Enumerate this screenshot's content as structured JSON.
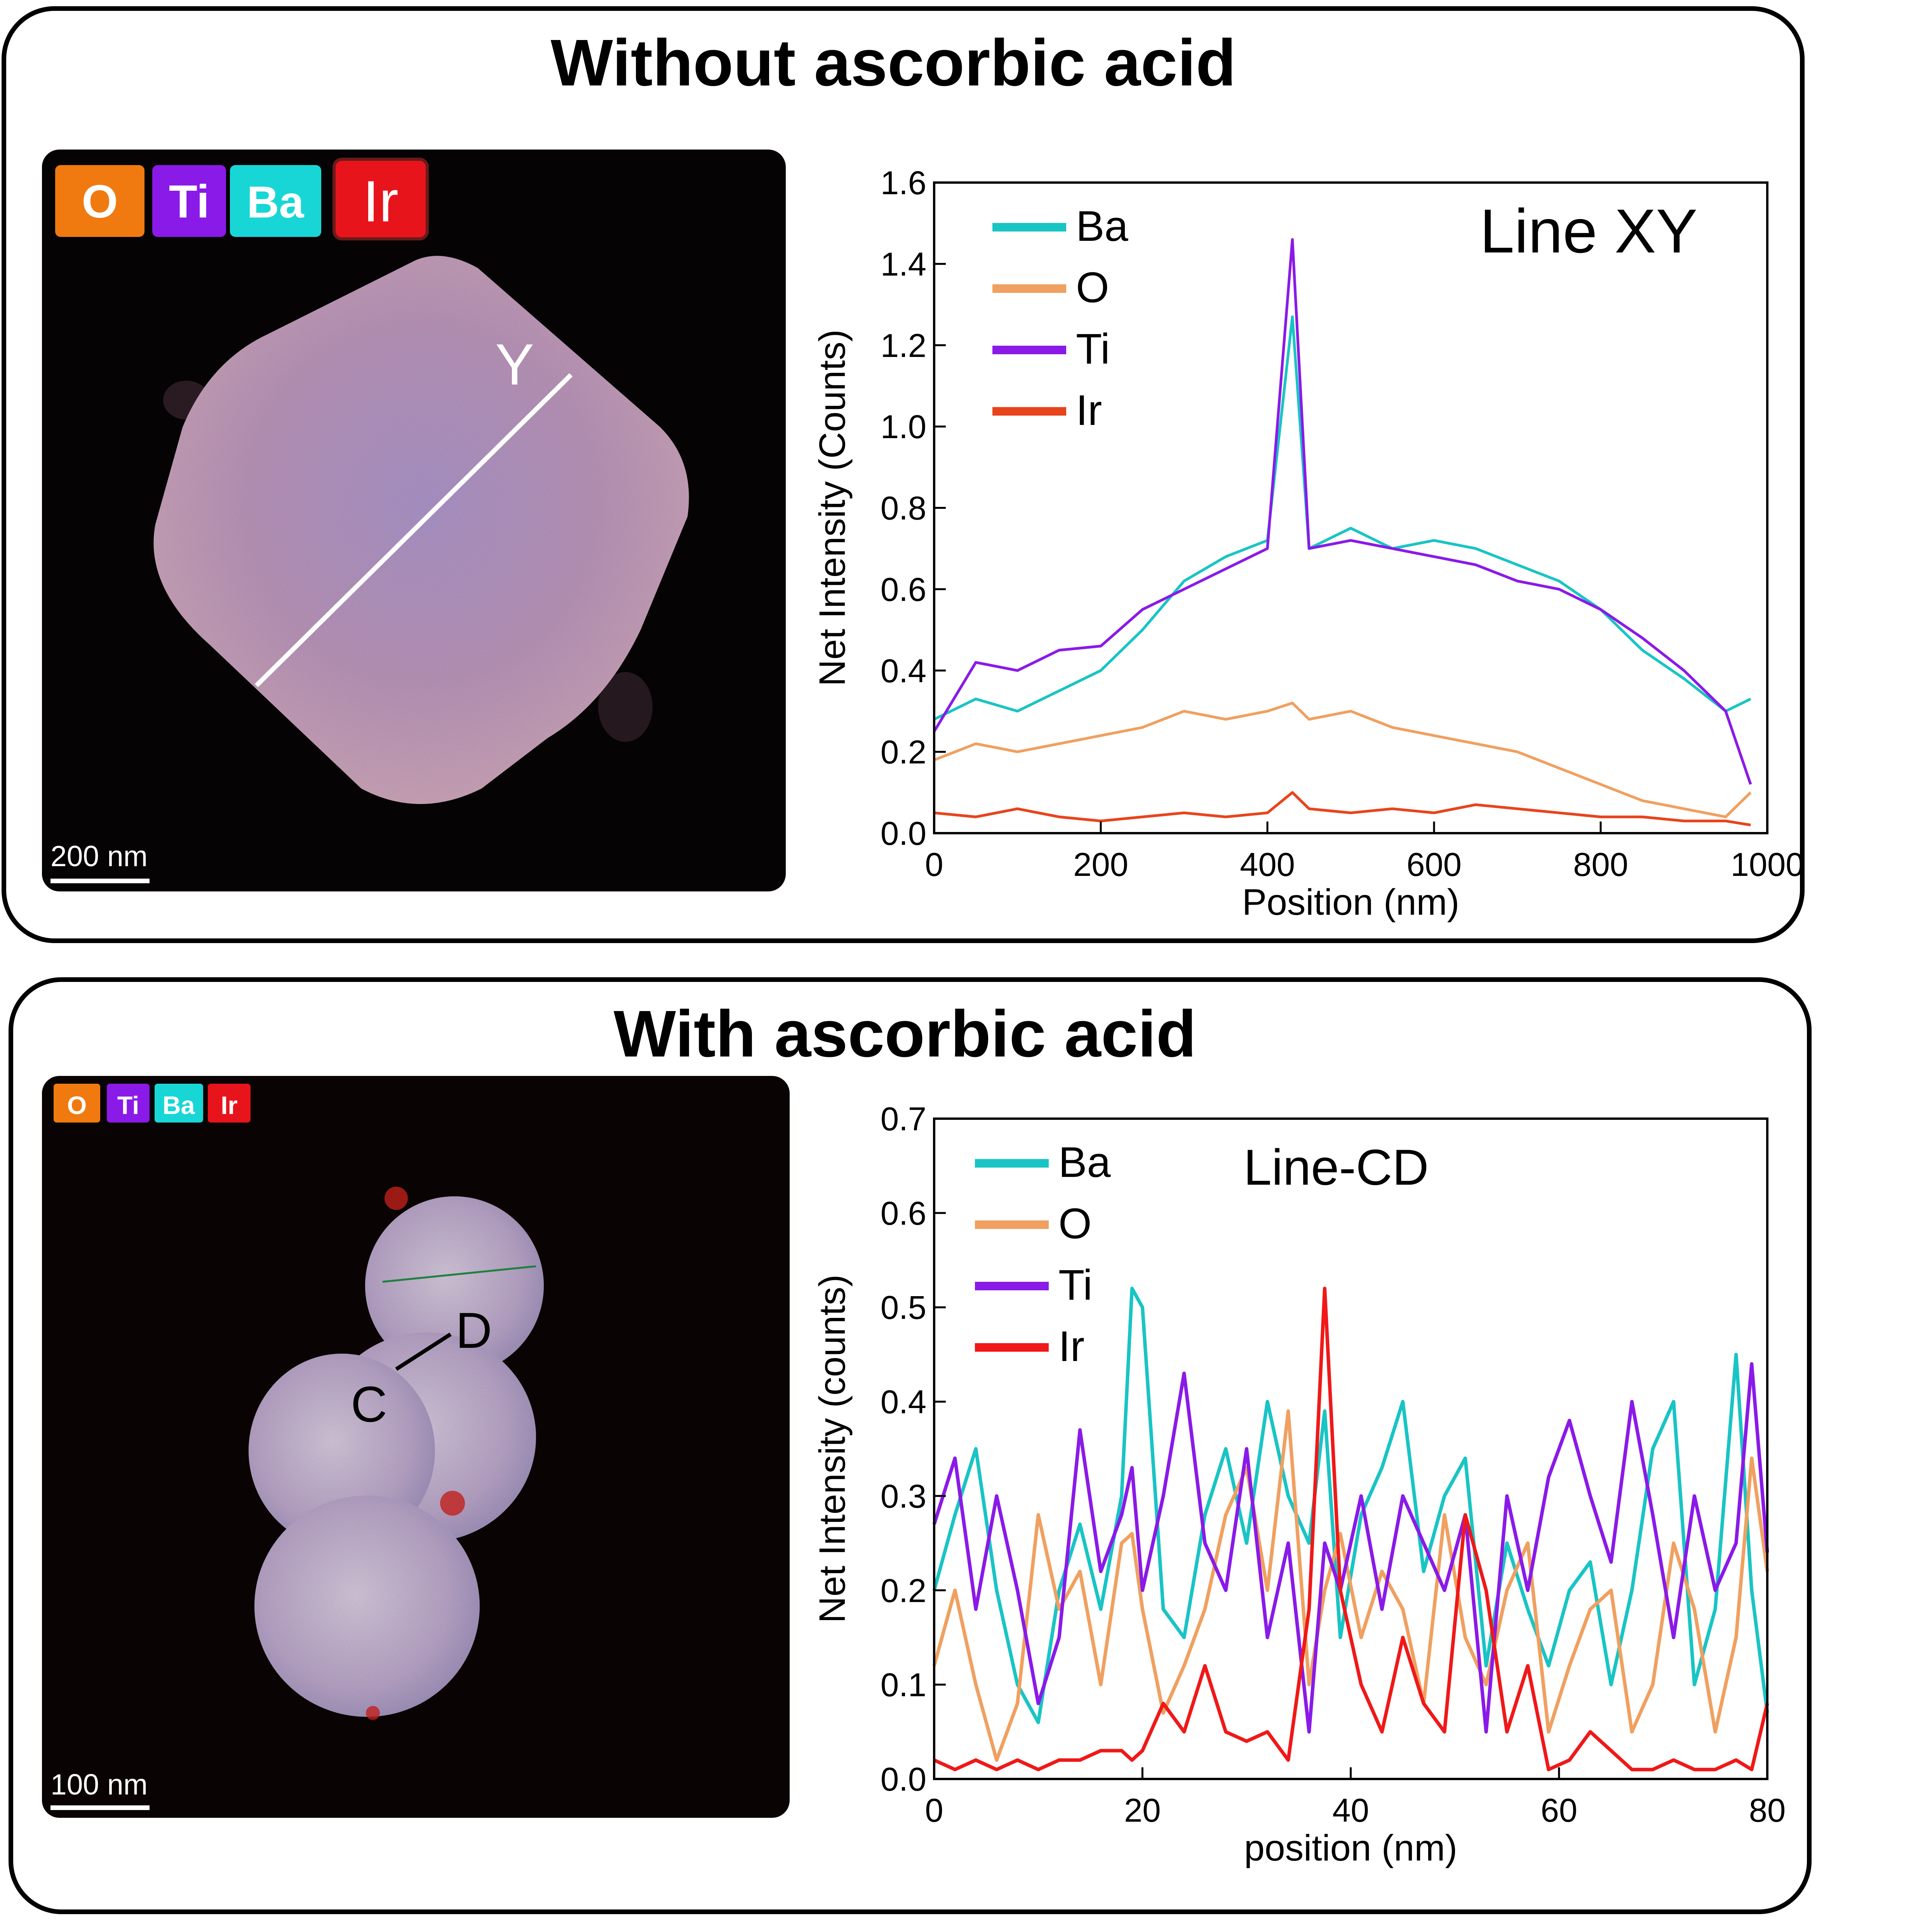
{
  "panels": [
    {
      "title": "Without ascorbic acid",
      "map": {
        "legend": [
          {
            "label": "O",
            "color": "#f07a10"
          },
          {
            "label": "Ti",
            "color": "#8a1ae8"
          },
          {
            "label": "Ba",
            "color": "#18d6d6"
          },
          {
            "label": "Ir",
            "color": "#e8141c"
          }
        ],
        "line_labels": [
          "Y"
        ],
        "scale_bar": "200 nm"
      }
    },
    {
      "title": "With ascorbic acid",
      "map": {
        "legend": [
          {
            "label": "O",
            "color": "#f07a10"
          },
          {
            "label": "Ti",
            "color": "#8a1ae8"
          },
          {
            "label": "Ba",
            "color": "#18d6d6"
          },
          {
            "label": "Ir",
            "color": "#e8141c"
          }
        ],
        "line_labels": [
          "D",
          "C"
        ],
        "scale_bar": "100 nm"
      }
    }
  ],
  "chart_data": [
    {
      "type": "line",
      "title": "Line XY",
      "xlabel": "Position (nm)",
      "ylabel": "Net Intensity (Counts)",
      "xlim": [
        0,
        1000
      ],
      "ylim": [
        0,
        1.6
      ],
      "xticks": [
        "0",
        "200",
        "400",
        "600",
        "800",
        "1000"
      ],
      "yticks": [
        "0.0",
        "0.2",
        "0.4",
        "0.6",
        "0.8",
        "1.0",
        "1.2",
        "1.4",
        "1.6"
      ],
      "x": [
        0,
        50,
        100,
        150,
        200,
        250,
        300,
        350,
        400,
        430,
        450,
        500,
        550,
        600,
        650,
        700,
        750,
        800,
        850,
        900,
        950,
        980
      ],
      "series": [
        {
          "name": "Ba",
          "color": "#19c4c4",
          "values": [
            0.28,
            0.33,
            0.3,
            0.35,
            0.4,
            0.5,
            0.62,
            0.68,
            0.72,
            1.27,
            0.7,
            0.75,
            0.7,
            0.72,
            0.7,
            0.66,
            0.62,
            0.55,
            0.45,
            0.38,
            0.3,
            0.33
          ]
        },
        {
          "name": "O",
          "color": "#f0a060",
          "values": [
            0.18,
            0.22,
            0.2,
            0.22,
            0.24,
            0.26,
            0.3,
            0.28,
            0.3,
            0.32,
            0.28,
            0.3,
            0.26,
            0.24,
            0.22,
            0.2,
            0.16,
            0.12,
            0.08,
            0.06,
            0.04,
            0.1
          ]
        },
        {
          "name": "Ti",
          "color": "#8a1ae8",
          "values": [
            0.25,
            0.42,
            0.4,
            0.45,
            0.46,
            0.55,
            0.6,
            0.65,
            0.7,
            1.46,
            0.7,
            0.72,
            0.7,
            0.68,
            0.66,
            0.62,
            0.6,
            0.55,
            0.48,
            0.4,
            0.3,
            0.12
          ]
        },
        {
          "name": "Ir",
          "color": "#e8441c",
          "values": [
            0.05,
            0.04,
            0.06,
            0.04,
            0.03,
            0.04,
            0.05,
            0.04,
            0.05,
            0.1,
            0.06,
            0.05,
            0.06,
            0.05,
            0.07,
            0.06,
            0.05,
            0.04,
            0.04,
            0.03,
            0.03,
            0.02
          ]
        }
      ],
      "legend_position": "top-left"
    },
    {
      "type": "line",
      "title": "Line-CD",
      "xlabel": "position (nm)",
      "ylabel": "Net Intensity (counts)",
      "xlim": [
        0,
        80
      ],
      "ylim": [
        0,
        0.7
      ],
      "xticks": [
        "0",
        "20",
        "40",
        "60",
        "80"
      ],
      "yticks": [
        "0.0",
        "0.1",
        "0.2",
        "0.3",
        "0.4",
        "0.5",
        "0.6",
        "0.7"
      ],
      "x": [
        0,
        2,
        4,
        6,
        8,
        10,
        12,
        14,
        16,
        18,
        19,
        20,
        22,
        24,
        26,
        28,
        30,
        32,
        34,
        36,
        37.5,
        39,
        41,
        43,
        45,
        47,
        49,
        51,
        53,
        55,
        57,
        59,
        61,
        63,
        65,
        67,
        69,
        71,
        73,
        75,
        77,
        78.5,
        80
      ],
      "series": [
        {
          "name": "Ba",
          "color": "#19c4c4",
          "values": [
            0.2,
            0.28,
            0.35,
            0.2,
            0.1,
            0.06,
            0.2,
            0.27,
            0.18,
            0.3,
            0.52,
            0.5,
            0.18,
            0.15,
            0.28,
            0.35,
            0.25,
            0.4,
            0.3,
            0.25,
            0.39,
            0.15,
            0.28,
            0.33,
            0.4,
            0.22,
            0.3,
            0.34,
            0.12,
            0.25,
            0.18,
            0.12,
            0.2,
            0.23,
            0.1,
            0.2,
            0.35,
            0.4,
            0.1,
            0.18,
            0.45,
            0.2,
            0.07
          ]
        },
        {
          "name": "O",
          "color": "#f0a060",
          "values": [
            0.12,
            0.2,
            0.1,
            0.02,
            0.08,
            0.28,
            0.18,
            0.22,
            0.1,
            0.25,
            0.26,
            0.18,
            0.07,
            0.12,
            0.18,
            0.28,
            0.33,
            0.2,
            0.39,
            0.1,
            0.2,
            0.26,
            0.15,
            0.22,
            0.18,
            0.08,
            0.28,
            0.15,
            0.1,
            0.2,
            0.25,
            0.05,
            0.12,
            0.18,
            0.2,
            0.05,
            0.1,
            0.25,
            0.18,
            0.05,
            0.15,
            0.34,
            0.22
          ]
        },
        {
          "name": "Ti",
          "color": "#8a1ae8",
          "values": [
            0.27,
            0.34,
            0.18,
            0.3,
            0.2,
            0.08,
            0.15,
            0.37,
            0.22,
            0.28,
            0.33,
            0.2,
            0.3,
            0.43,
            0.25,
            0.2,
            0.35,
            0.15,
            0.25,
            0.05,
            0.25,
            0.2,
            0.3,
            0.18,
            0.3,
            0.25,
            0.2,
            0.28,
            0.05,
            0.3,
            0.2,
            0.32,
            0.38,
            0.3,
            0.23,
            0.4,
            0.28,
            0.15,
            0.3,
            0.2,
            0.25,
            0.44,
            0.24
          ]
        },
        {
          "name": "Ir",
          "color": "#f01818",
          "values": [
            0.02,
            0.01,
            0.02,
            0.01,
            0.02,
            0.01,
            0.02,
            0.02,
            0.03,
            0.03,
            0.02,
            0.03,
            0.08,
            0.05,
            0.12,
            0.05,
            0.04,
            0.05,
            0.02,
            0.18,
            0.52,
            0.2,
            0.1,
            0.05,
            0.15,
            0.08,
            0.05,
            0.28,
            0.2,
            0.05,
            0.12,
            0.01,
            0.02,
            0.05,
            0.03,
            0.01,
            0.01,
            0.02,
            0.01,
            0.01,
            0.02,
            0.01,
            0.08
          ]
        }
      ],
      "legend_position": "top-left"
    }
  ]
}
